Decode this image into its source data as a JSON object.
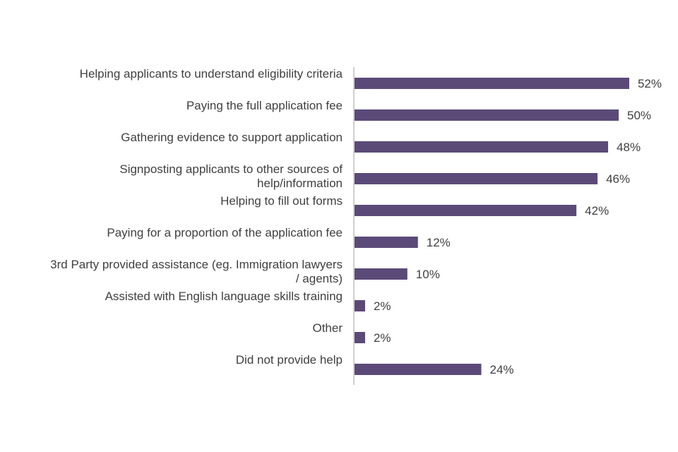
{
  "chart_data": {
    "type": "bar",
    "orientation": "horizontal",
    "categories": [
      [
        "Helping applicants to understand eligibility criteria"
      ],
      [
        "Paying the full application fee"
      ],
      [
        "Gathering evidence to support application"
      ],
      [
        "Signposting applicants to other sources of",
        "help/information"
      ],
      [
        "Helping to fill out forms"
      ],
      [
        "Paying for a proportion of the application fee"
      ],
      [
        "3rd Party provided assistance (eg. Immigration lawyers",
        "/ agents)"
      ],
      [
        "Assisted with English language skills training"
      ],
      [
        "Other"
      ],
      [
        "Did not provide help"
      ]
    ],
    "values": [
      52,
      50,
      48,
      46,
      42,
      12,
      10,
      2,
      2,
      24
    ],
    "value_labels": [
      "52%",
      "50%",
      "48%",
      "46%",
      "42%",
      "12%",
      "10%",
      "2%",
      "2%",
      "24%"
    ],
    "xlim": [
      0,
      100
    ],
    "grid": false,
    "legend": "none",
    "colors": {
      "bar": "#5b4a78",
      "axis": "#bfbfbf",
      "text": "#404040"
    }
  }
}
